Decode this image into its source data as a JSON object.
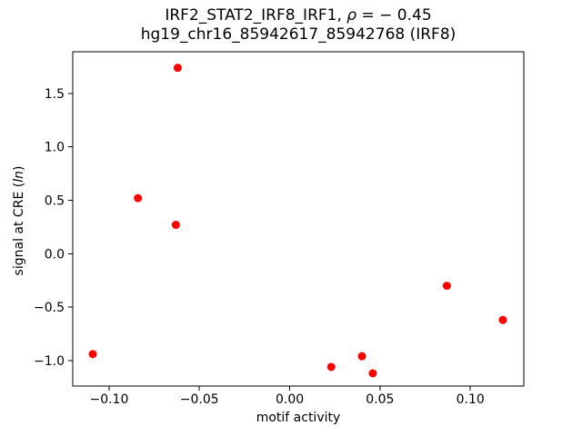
{
  "figure": {
    "title_line1_prefix": "IRF2_STAT2_IRF8_IRF1, ",
    "title_line1_rho": "ρ",
    "title_line1_suffix": " = − 0.45",
    "title_line2": "hg19_chr16_85942617_85942768 (IRF8)",
    "xlabel": "motif activity",
    "ylabel_prefix": "signal at CRE (",
    "ylabel_italic": "ln",
    "ylabel_suffix": ")"
  },
  "chart_data": {
    "type": "scatter",
    "title": "IRF2_STAT2_IRF8_IRF1, ρ = − 0.45\nhg19_chr16_85942617_85942768 (IRF8)",
    "xlabel": "motif activity",
    "ylabel": "signal at CRE (ln)",
    "legend": null,
    "grid": false,
    "marker": "circle",
    "marker_color": "#ff0000",
    "marker_radius_px": 4.5,
    "axis_color": "#000000",
    "background_color": "#ffffff",
    "xlim": [
      -0.1201,
      0.1296
    ],
    "ylim": [
      -1.239,
      1.89
    ],
    "xticks": [
      -0.1,
      -0.05,
      0.0,
      0.05,
      0.1
    ],
    "yticks": [
      -1.0,
      -0.5,
      0.0,
      0.5,
      1.0,
      1.5
    ],
    "points": [
      {
        "x": -0.062,
        "y": 1.74
      },
      {
        "x": -0.084,
        "y": 0.52
      },
      {
        "x": -0.063,
        "y": 0.27
      },
      {
        "x": -0.109,
        "y": -0.94
      },
      {
        "x": 0.023,
        "y": -1.06
      },
      {
        "x": 0.04,
        "y": -0.96
      },
      {
        "x": 0.046,
        "y": -1.12
      },
      {
        "x": 0.087,
        "y": -0.3
      },
      {
        "x": 0.118,
        "y": -0.62
      }
    ]
  }
}
